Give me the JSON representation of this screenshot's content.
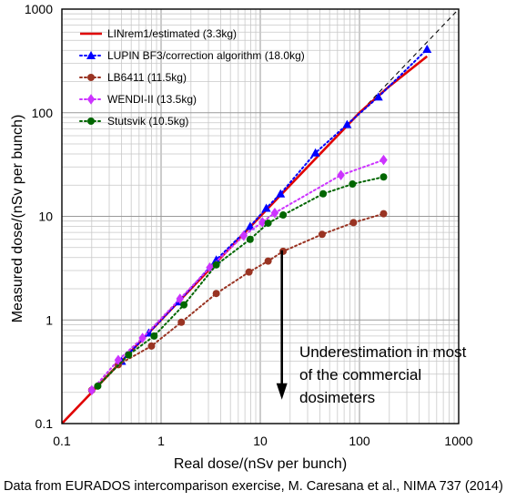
{
  "chart_data": {
    "type": "line",
    "x_scale": "log",
    "y_scale": "log",
    "xlim": [
      0.1,
      1000
    ],
    "ylim": [
      0.1,
      1000
    ],
    "xlabel": "Real dose/(nSv per bunch)",
    "ylabel": "Measured dose/(nSv per bunch)",
    "x_ticks": [
      {
        "value": 0.1,
        "label": "0.1"
      },
      {
        "value": 1,
        "label": "1"
      },
      {
        "value": 10,
        "label": "10"
      },
      {
        "value": 100,
        "label": "100"
      },
      {
        "value": 1000,
        "label": "1000"
      }
    ],
    "y_ticks": [
      {
        "value": 0.1,
        "label": "0.1"
      },
      {
        "value": 1,
        "label": "1"
      },
      {
        "value": 10,
        "label": "10"
      },
      {
        "value": 100,
        "label": "100"
      },
      {
        "value": 1000,
        "label": "1000"
      }
    ],
    "grid": true,
    "legend_position": "top-left",
    "reference_line": {
      "style": "dashed",
      "color": "#000000",
      "x": [
        0.1,
        1000
      ],
      "y": [
        0.1,
        1000
      ]
    },
    "series": [
      {
        "name": "LINrem1/estimated (3.3kg)",
        "color": "#e00000",
        "marker": "none",
        "line": "solid",
        "x": [
          0.1,
          1,
          10,
          100,
          200,
          480
        ],
        "y": [
          0.1,
          1,
          10,
          100,
          180,
          350
        ]
      },
      {
        "name": "LUPIN BF3/correction algorithm (18.0kg)",
        "color": "#0000ff",
        "marker": "triangle",
        "line": "dotted",
        "x": [
          0.4,
          0.75,
          1.5,
          3.6,
          7.9,
          11.5,
          16,
          36,
          75,
          155,
          480
        ],
        "y": [
          0.4,
          0.75,
          1.5,
          3.8,
          8,
          12,
          16.5,
          41,
          77,
          142,
          410
        ]
      },
      {
        "name": "LB6411 (11.5kg)",
        "color": "#993322",
        "marker": "circle",
        "line": "dotted",
        "x": [
          0.2,
          0.37,
          0.8,
          1.6,
          3.6,
          7.7,
          12,
          17,
          42,
          87,
          175
        ],
        "y": [
          0.21,
          0.37,
          0.56,
          0.95,
          1.8,
          2.9,
          3.7,
          4.6,
          6.7,
          8.7,
          10.6
        ]
      },
      {
        "name": "WENDI-II (13.5kg)",
        "color": "#cc33ff",
        "marker": "diamond",
        "line": "dotted",
        "x": [
          0.2,
          0.37,
          0.65,
          1.55,
          3.1,
          6.8,
          10.5,
          14,
          65,
          175
        ],
        "y": [
          0.21,
          0.41,
          0.67,
          1.6,
          3.2,
          6.5,
          8.8,
          10.8,
          25,
          35
        ]
      },
      {
        "name": "Stutsvik (10.5kg)",
        "color": "#006600",
        "marker": "circle",
        "line": "dotted",
        "x": [
          0.23,
          0.47,
          0.85,
          1.7,
          3.6,
          7.9,
          12,
          17,
          43,
          85,
          175
        ],
        "y": [
          0.23,
          0.46,
          0.7,
          1.4,
          3.4,
          6,
          8.6,
          10.3,
          16.5,
          20.5,
          24
        ]
      }
    ],
    "annotation": {
      "lines": [
        "Underestimation in most",
        "of the commercial",
        "dosimeters"
      ],
      "arrow_from": [
        16.5,
        4.7
      ],
      "arrow_to": [
        16.5,
        0.17
      ]
    }
  },
  "caption": "Data from EURADOS intercomparison exercise, M. Caresana et al., NIMA 737 (2014)"
}
